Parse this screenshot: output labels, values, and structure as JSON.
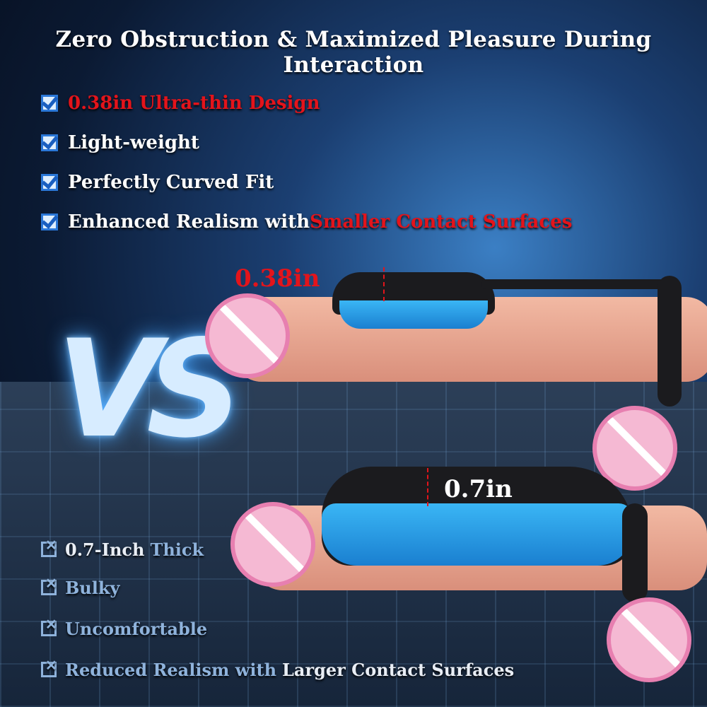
{
  "title": "Zero Obstruction & Maximized Pleasure During Interaction",
  "pros": [
    {
      "parts": [
        {
          "text": "0.38in Ultra-thin Design",
          "color": "red"
        }
      ]
    },
    {
      "parts": [
        {
          "text": "Light-weight",
          "color": "white"
        }
      ]
    },
    {
      "parts": [
        {
          "text": "Perfectly Curved Fit",
          "color": "white"
        }
      ]
    },
    {
      "parts": [
        {
          "text": "Enhanced Realism with ",
          "color": "white"
        },
        {
          "text": "Smaller Contact Surfaces",
          "color": "red"
        }
      ]
    }
  ],
  "vs_label": "VS",
  "top_measure": "0.38in",
  "bottom_measure": "0.7in",
  "cons": [
    {
      "a": "0.7-Inch ",
      "b": "Thick",
      "c": ""
    },
    {
      "a": "Bulky",
      "b": "",
      "c": ""
    },
    {
      "a": "Uncomfortable",
      "b": "",
      "c": ""
    },
    {
      "a": "Reduced Realism with",
      "b": "",
      "c": "Larger Contact Surfaces"
    }
  ],
  "colors": {
    "accent_red": "#e3141b",
    "check_blue": "#2b78d8",
    "con_text": "#8fb3dc",
    "censor_pink": "#f5b9d3"
  },
  "icons": {
    "pro": "checkbox-checked-icon",
    "con": "checkbox-crossed-icon",
    "censor": "censor-circle-icon"
  }
}
